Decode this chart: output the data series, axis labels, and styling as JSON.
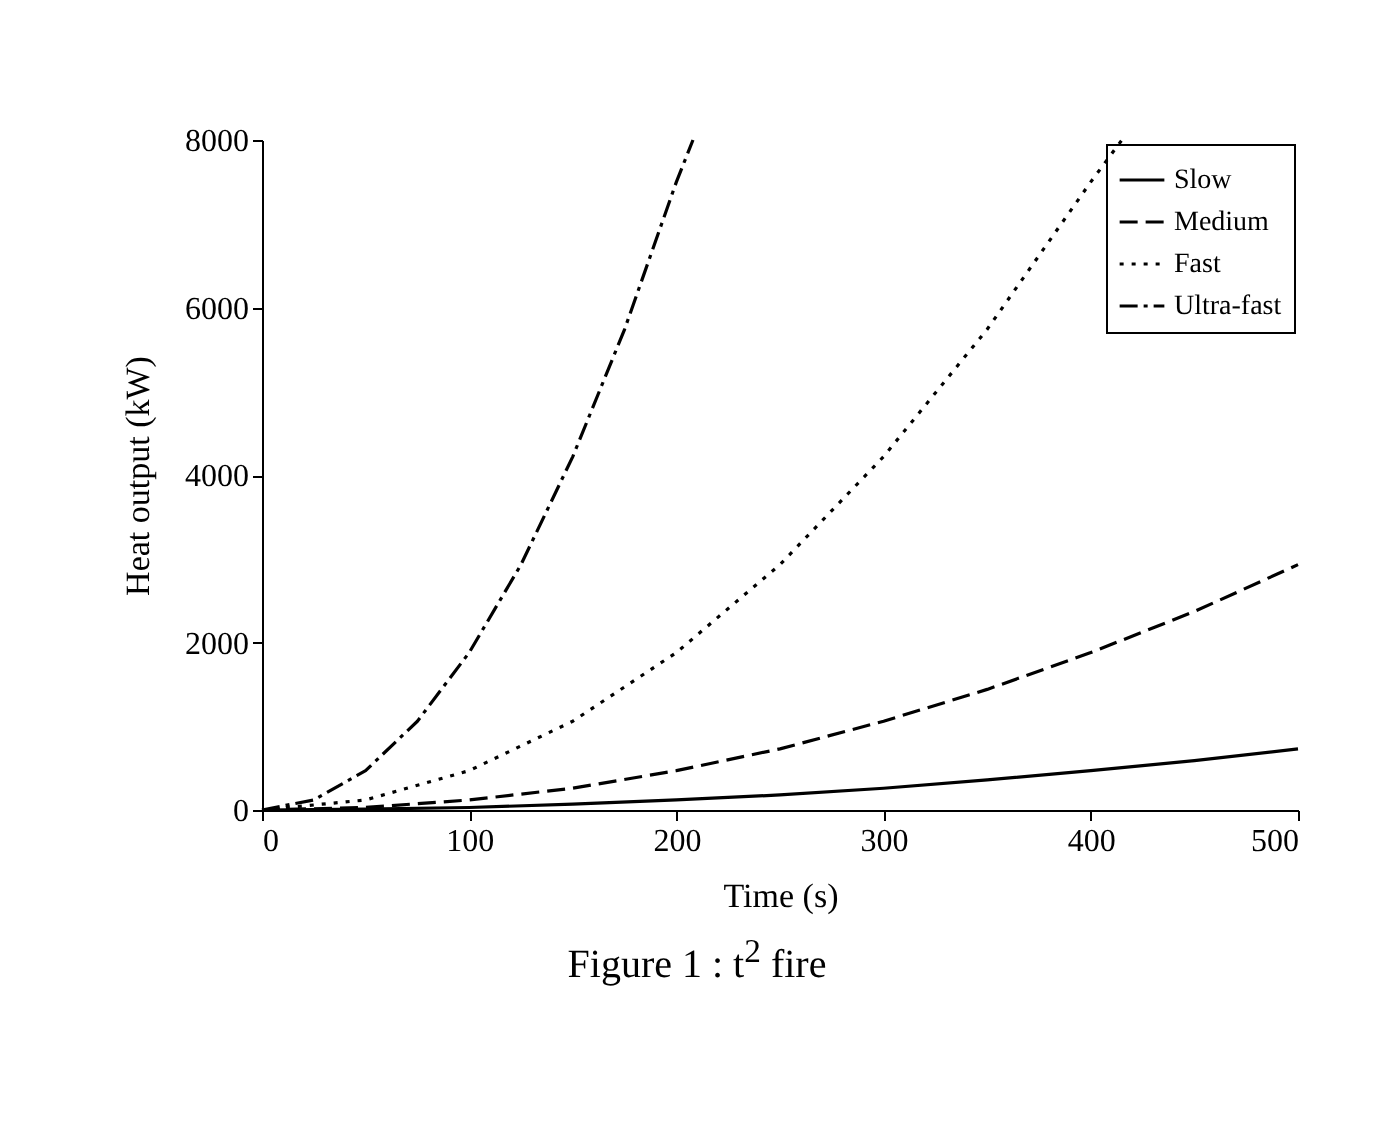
{
  "chart_data": {
    "type": "line",
    "title": "Figure 1 : t$^{2}$ fire",
    "xlabel": "Time (s)",
    "ylabel": "Heat output (kW)",
    "xlim": [
      0,
      500
    ],
    "xticks": [
      0,
      100,
      200,
      300,
      400,
      500
    ],
    "ylim": [
      0,
      8000
    ],
    "yticks": [
      0,
      2000,
      4000,
      6000,
      8000
    ],
    "grid": false,
    "legend": "top right",
    "series": [
      {
        "name": "Slow",
        "color": "#000000",
        "line_style": "solid",
        "x": [
          0,
          50,
          100,
          150,
          200,
          250,
          300,
          350,
          400,
          450,
          500
        ],
        "values": [
          0,
          10,
          30,
          70,
          120,
          180,
          260,
          360,
          470,
          590,
          730
        ]
      },
      {
        "name": "Medium",
        "color": "#000000",
        "line_style": "dashed",
        "x": [
          0,
          50,
          100,
          150,
          200,
          250,
          300,
          350,
          400,
          450,
          500
        ],
        "values": [
          0,
          30,
          120,
          260,
          470,
          730,
          1060,
          1440,
          1880,
          2370,
          2930
        ]
      },
      {
        "name": "Fast",
        "color": "#000000",
        "line_style": "dotted",
        "x": [
          0,
          50,
          100,
          150,
          200,
          250,
          300,
          350,
          400,
          415
        ],
        "values": [
          0,
          120,
          470,
          1060,
          1880,
          2930,
          4220,
          5740,
          7500,
          8000
        ]
      },
      {
        "name": "Ultra-fast",
        "color": "#000000",
        "line_style": "dashdot",
        "x": [
          0,
          25,
          50,
          75,
          100,
          125,
          150,
          175,
          200,
          208
        ],
        "values": [
          0,
          120,
          470,
          1060,
          1880,
          2930,
          4220,
          5740,
          7500,
          8000
        ]
      }
    ]
  }
}
